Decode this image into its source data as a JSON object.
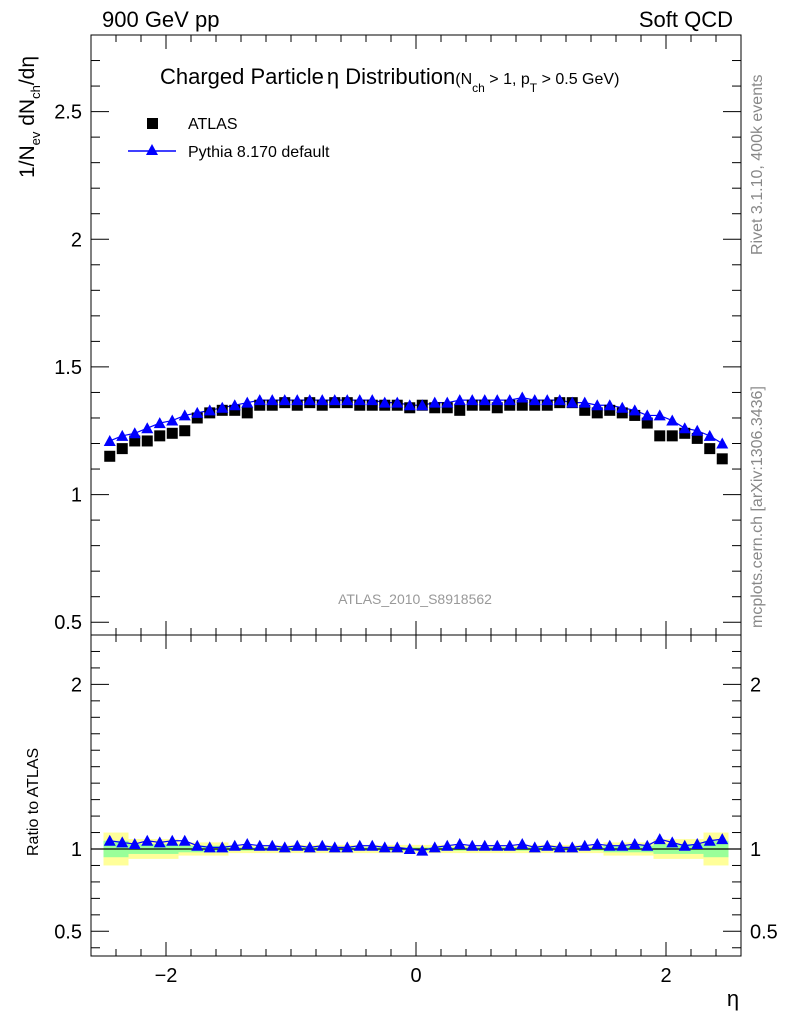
{
  "header": {
    "energy_label": "900 GeV pp",
    "process_label": "Soft QCD"
  },
  "side_labels": {
    "rivet_info": "Rivet 3.1.10,  400k events",
    "source_info": "mcplots.cern.ch [arXiv:1306.3436]"
  },
  "chart_data": {
    "type": "scatter",
    "title_main": "Charged Particle",
    "title_symbol": "η",
    "title_tail": " Distribution",
    "title_cuts": {
      "open": "(N",
      "nch_sub": "ch",
      "mid": " > 1, p",
      "pt_sub": "T",
      "close": " > 0.5 GeV)"
    },
    "analysis_label": "ATLAS_2010_S8918562",
    "ylabel_parts": {
      "p1": "1/N",
      "s1": "ev",
      "p2": " dN",
      "s2": "ch",
      "p3": "/dη"
    },
    "xlabel": "η",
    "ratio_ylabel": "Ratio to ATLAS",
    "xlim": [
      -2.6,
      2.6
    ],
    "ylim": [
      0.45,
      2.8
    ],
    "ratio_ylim": [
      0.35,
      2.3
    ],
    "x_ticks": [
      -2,
      0,
      2
    ],
    "x_tick_labels": [
      "−2",
      "0",
      "2"
    ],
    "y_ticks": [
      0.5,
      1,
      1.5,
      2,
      2.5
    ],
    "y_tick_labels": [
      "0.5",
      "1",
      "1.5",
      "2",
      "2.5"
    ],
    "ratio_y_ticks": [
      0.5,
      1,
      2
    ],
    "ratio_y_tick_labels": [
      "0.5",
      "1",
      "2"
    ],
    "x": [
      -2.45,
      -2.35,
      -2.25,
      -2.15,
      -2.05,
      -1.95,
      -1.85,
      -1.75,
      -1.65,
      -1.55,
      -1.45,
      -1.35,
      -1.25,
      -1.15,
      -1.05,
      -0.95,
      -0.85,
      -0.75,
      -0.65,
      -0.55,
      -0.45,
      -0.35,
      -0.25,
      -0.15,
      -0.05,
      0.05,
      0.15,
      0.25,
      0.35,
      0.45,
      0.55,
      0.65,
      0.75,
      0.85,
      0.95,
      1.05,
      1.15,
      1.25,
      1.35,
      1.45,
      1.55,
      1.65,
      1.75,
      1.85,
      1.95,
      2.05,
      2.15,
      2.25,
      2.35,
      2.45
    ],
    "series": [
      {
        "name": "ATLAS",
        "color": "#000000",
        "marker": "square",
        "values": [
          1.15,
          1.18,
          1.21,
          1.21,
          1.23,
          1.24,
          1.25,
          1.3,
          1.32,
          1.33,
          1.33,
          1.32,
          1.35,
          1.35,
          1.36,
          1.35,
          1.36,
          1.35,
          1.36,
          1.36,
          1.35,
          1.35,
          1.35,
          1.35,
          1.34,
          1.35,
          1.34,
          1.34,
          1.33,
          1.35,
          1.35,
          1.34,
          1.35,
          1.35,
          1.35,
          1.35,
          1.36,
          1.36,
          1.33,
          1.32,
          1.33,
          1.32,
          1.31,
          1.28,
          1.23,
          1.23,
          1.24,
          1.22,
          1.18,
          1.14
        ]
      },
      {
        "name": "Pythia 8.170 default",
        "color": "#0000ff",
        "marker": "triangle",
        "values": [
          1.21,
          1.23,
          1.24,
          1.26,
          1.28,
          1.29,
          1.31,
          1.32,
          1.33,
          1.34,
          1.35,
          1.36,
          1.37,
          1.37,
          1.37,
          1.37,
          1.37,
          1.37,
          1.37,
          1.37,
          1.37,
          1.37,
          1.36,
          1.36,
          1.35,
          1.35,
          1.36,
          1.36,
          1.37,
          1.37,
          1.37,
          1.37,
          1.37,
          1.38,
          1.37,
          1.37,
          1.37,
          1.36,
          1.36,
          1.35,
          1.35,
          1.34,
          1.33,
          1.31,
          1.31,
          1.29,
          1.26,
          1.25,
          1.23,
          1.2
        ]
      }
    ],
    "ratio_values": [
      1.05,
      1.04,
      1.03,
      1.05,
      1.04,
      1.05,
      1.05,
      1.02,
      1.01,
      1.01,
      1.02,
      1.03,
      1.02,
      1.02,
      1.01,
      1.02,
      1.01,
      1.02,
      1.01,
      1.01,
      1.02,
      1.02,
      1.01,
      1.01,
      1.0,
      0.99,
      1.01,
      1.02,
      1.03,
      1.02,
      1.02,
      1.02,
      1.02,
      1.03,
      1.01,
      1.02,
      1.01,
      1.01,
      1.02,
      1.03,
      1.02,
      1.02,
      1.03,
      1.02,
      1.06,
      1.04,
      1.02,
      1.03,
      1.05,
      1.06
    ],
    "stat_band": [
      {
        "x": [
          -2.5,
          -2.3
        ],
        "lo": 0.95,
        "hi": 1.05
      },
      {
        "x": [
          -2.3,
          -1.9
        ],
        "lo": 0.97,
        "hi": 1.03
      },
      {
        "x": [
          -1.9,
          -1.5
        ],
        "lo": 0.98,
        "hi": 1.02
      },
      {
        "x": [
          -1.5,
          1.5
        ],
        "lo": 0.99,
        "hi": 1.01
      },
      {
        "x": [
          1.5,
          1.9
        ],
        "lo": 0.98,
        "hi": 1.02
      },
      {
        "x": [
          1.9,
          2.3
        ],
        "lo": 0.97,
        "hi": 1.03
      },
      {
        "x": [
          2.3,
          2.5
        ],
        "lo": 0.95,
        "hi": 1.05
      }
    ],
    "syst_band": [
      {
        "x": [
          -2.5,
          -2.3
        ],
        "lo": 0.9,
        "hi": 1.1
      },
      {
        "x": [
          -2.3,
          -1.9
        ],
        "lo": 0.94,
        "hi": 1.06
      },
      {
        "x": [
          -1.9,
          -1.5
        ],
        "lo": 0.96,
        "hi": 1.04
      },
      {
        "x": [
          -1.5,
          1.5
        ],
        "lo": 0.975,
        "hi": 1.025
      },
      {
        "x": [
          1.5,
          1.9
        ],
        "lo": 0.96,
        "hi": 1.04
      },
      {
        "x": [
          1.9,
          2.3
        ],
        "lo": 0.94,
        "hi": 1.06
      },
      {
        "x": [
          2.3,
          2.5
        ],
        "lo": 0.9,
        "hi": 1.1
      }
    ],
    "colors": {
      "stat_band": "#99ff99",
      "syst_band": "#ffff99"
    },
    "legend_position": "top-left"
  }
}
